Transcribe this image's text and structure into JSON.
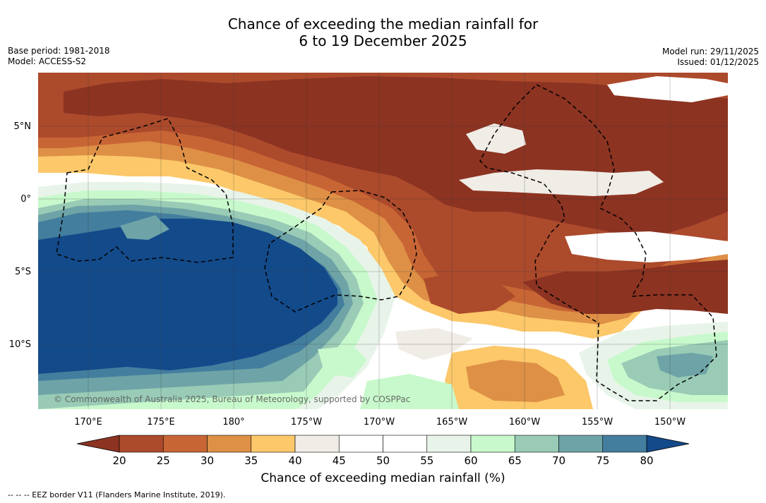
{
  "title_line1": "Chance of exceeding the median rainfall for",
  "title_line2": "6 to 19 December 2025",
  "base_period": "Base period: 1981-2018",
  "model": "Model: ACCESS-S2",
  "model_run": "Model run: 29/11/2025",
  "issued": "Issued: 01/12/2025",
  "copyright": "© Commonwealth of Australia 2025, Bureau of Meteorology, supported by COSPPac",
  "lon_labels": [
    "170°E",
    "175°E",
    "180°",
    "175°W",
    "170°W",
    "165°W",
    "160°W",
    "155°W",
    "150°W"
  ],
  "lat_labels": [
    "5°N",
    "0°",
    "5°S",
    "10°S"
  ],
  "colorbar": {
    "title": "Chance of exceeding median rainfall (%)",
    "ticks": [
      "20",
      "25",
      "30",
      "35",
      "40",
      "45",
      "50",
      "55",
      "60",
      "65",
      "70",
      "75",
      "80"
    ],
    "colors": [
      "#8c3322",
      "#ac4a2c",
      "#c86535",
      "#de9046",
      "#fcc86a",
      "#f0ece6",
      "#ffffff",
      "#ffffff",
      "#e8f4e9",
      "#c8f9cc",
      "#99cbb6",
      "#6ea4a7",
      "#447e9e",
      "#134a8a"
    ]
  },
  "footnote": "-- -- -- EEZ border V11 (Flanders Marine Institute, 2019)."
}
